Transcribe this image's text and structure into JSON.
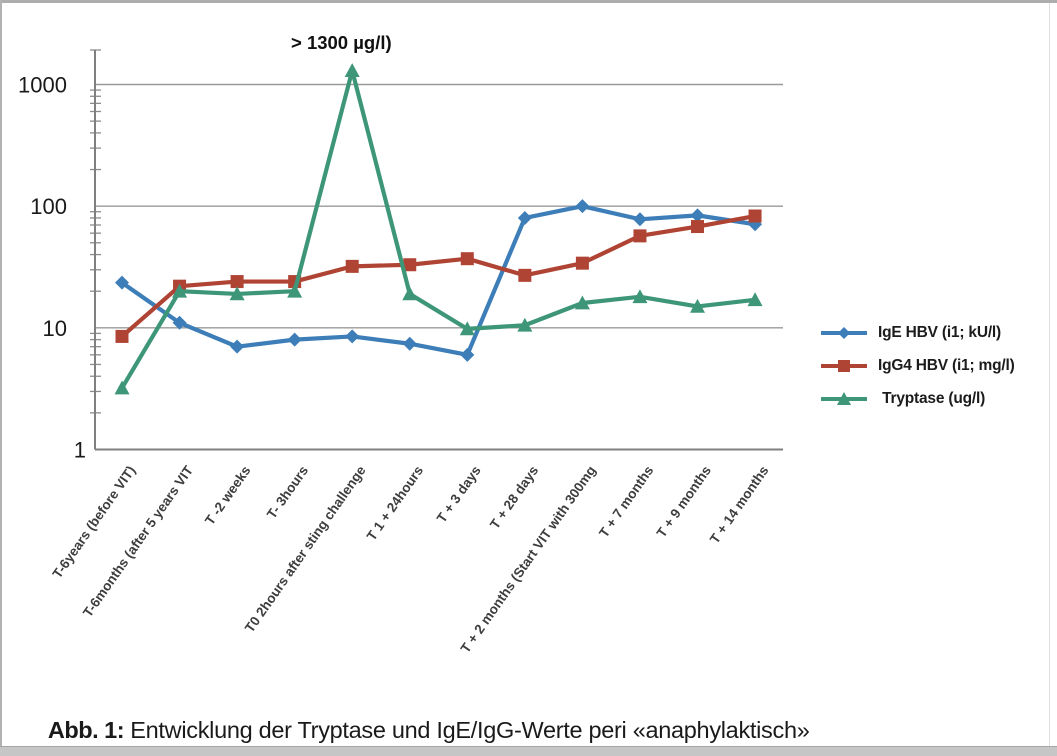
{
  "figure": {
    "caption_label": "Abb. 1:",
    "caption_text": " Entwicklung der Tryptase und IgE/IgG-Werte peri «anaphylaktisch»"
  },
  "chart_data": {
    "type": "line",
    "y_scale": "log",
    "title": "",
    "xlabel": "",
    "ylabel": "",
    "annotation": "> 1300 µg/l)",
    "y_ticks": [
      1,
      10,
      100,
      1000
    ],
    "ylim": [
      1,
      2000
    ],
    "grid": "horizontal-major-with-minor-log-ticks",
    "legend_position": "right",
    "categories": [
      "T-6years (before VIT)",
      "T-6months (after 5 years VIT",
      "T -2 weeks",
      "T- 3hours",
      "T0 2hours after sting challenge",
      "T 1 + 24hours",
      "T + 3 days",
      "T + 28 days",
      "T + 2 months (Start VIT with 300mg",
      "T + 7 months",
      "T + 9 months",
      "T + 14 months"
    ],
    "series": [
      {
        "name": "IgE HBV (i1; kU/l)",
        "marker": "diamond",
        "color": "#3D7EB8",
        "values": [
          23.5,
          11,
          7,
          8,
          8.5,
          7.4,
          6,
          80,
          100,
          78,
          84,
          71
        ]
      },
      {
        "name": "IgG4 HBV (i1; mg/l)",
        "marker": "square",
        "color": "#B04434",
        "values": [
          8.5,
          22,
          24,
          24,
          32,
          33,
          37,
          27,
          34,
          57,
          68,
          83
        ]
      },
      {
        "name": "Tryptase (ug/l)",
        "marker": "triangle",
        "color": "#3E9678",
        "values": [
          3.2,
          20,
          19,
          20,
          1300,
          19,
          9.8,
          10.5,
          16,
          18,
          15,
          17
        ]
      }
    ]
  }
}
